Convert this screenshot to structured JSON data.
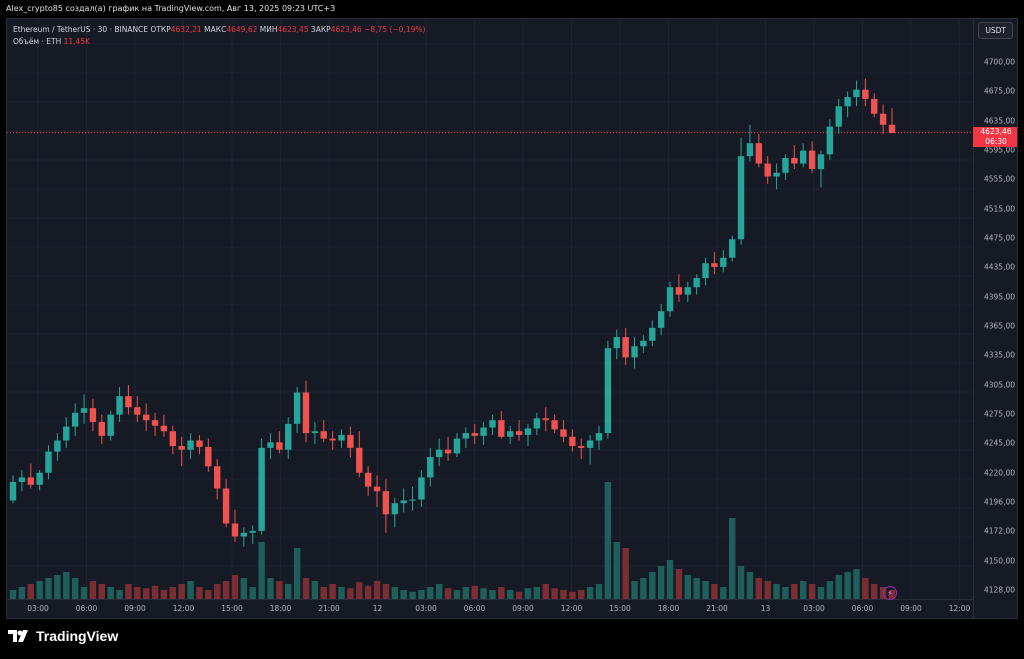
{
  "header": {
    "caption": "Alex_crypto85 создал(а) график на TradingView.com, Авг 13, 2025 09:23 UTC+3"
  },
  "legend": {
    "symbol": "Ethereum / TetherUS · 30 · BINANCE",
    "open_label": "ОТКР",
    "open": "4632,21",
    "high_label": "МАКС",
    "high": "4649,62",
    "low_label": "МИН",
    "low": "4623,45",
    "close_label": "ЗАКР",
    "close": "4623,46",
    "change": "−8,75 (−0,19%)",
    "volume_label": "Объём · ETH",
    "volume": "11,45K"
  },
  "currency_button": "USDT",
  "last_price": {
    "value": "4623,46",
    "countdown": "06:30"
  },
  "footer": {
    "brand": "TradingView"
  },
  "colors": {
    "up": "#26a69a",
    "down": "#ef5350",
    "vol_up": "#1e5f5b",
    "vol_down": "#7a2e33",
    "background": "#161a25"
  },
  "chart_data": {
    "type": "candlestick",
    "y_ticks": [
      "4700,00",
      "4675,00",
      "4635,00",
      "4595,00",
      "4555,00",
      "4515,00",
      "4475,00",
      "4435,00",
      "4395,00",
      "4365,00",
      "4335,00",
      "4305,00",
      "4275,00",
      "4245,00",
      "4220,00",
      "4196,00",
      "4172,00",
      "4150,00",
      "4128,00"
    ],
    "x_ticks": [
      "03:00",
      "06:00",
      "09:00",
      "12:00",
      "15:00",
      "18:00",
      "21:00",
      "12",
      "03:00",
      "06:00",
      "09:00",
      "12:00",
      "15:00",
      "18:00",
      "21:00",
      "13",
      "03:00",
      "06:00",
      "09:00",
      "12:00"
    ],
    "candles": [
      [
        4225,
        4252,
        4222,
        4245
      ],
      [
        4245,
        4258,
        4235,
        4250
      ],
      [
        4250,
        4265,
        4238,
        4242
      ],
      [
        4242,
        4258,
        4236,
        4255
      ],
      [
        4255,
        4285,
        4248,
        4278
      ],
      [
        4278,
        4298,
        4268,
        4290
      ],
      [
        4290,
        4315,
        4282,
        4305
      ],
      [
        4305,
        4330,
        4295,
        4320
      ],
      [
        4320,
        4340,
        4308,
        4325
      ],
      [
        4325,
        4335,
        4300,
        4310
      ],
      [
        4310,
        4318,
        4286,
        4295
      ],
      [
        4295,
        4322,
        4290,
        4318
      ],
      [
        4318,
        4348,
        4310,
        4338
      ],
      [
        4338,
        4350,
        4318,
        4326
      ],
      [
        4326,
        4338,
        4310,
        4318
      ],
      [
        4318,
        4330,
        4300,
        4312
      ],
      [
        4312,
        4320,
        4295,
        4306
      ],
      [
        4306,
        4318,
        4294,
        4300
      ],
      [
        4300,
        4306,
        4275,
        4284
      ],
      [
        4284,
        4294,
        4262,
        4280
      ],
      [
        4280,
        4298,
        4270,
        4290
      ],
      [
        4290,
        4296,
        4275,
        4283
      ],
      [
        4283,
        4292,
        4256,
        4262
      ],
      [
        4262,
        4270,
        4226,
        4238
      ],
      [
        4238,
        4248,
        4196,
        4200
      ],
      [
        4200,
        4215,
        4180,
        4186
      ],
      [
        4186,
        4196,
        4175,
        4190
      ],
      [
        4190,
        4198,
        4178,
        4192
      ],
      [
        4192,
        4292,
        4188,
        4282
      ],
      [
        4282,
        4298,
        4270,
        4288
      ],
      [
        4288,
        4300,
        4276,
        4280
      ],
      [
        4280,
        4315,
        4270,
        4308
      ],
      [
        4308,
        4348,
        4298,
        4342
      ],
      [
        4342,
        4355,
        4288,
        4298
      ],
      [
        4298,
        4310,
        4286,
        4300
      ],
      [
        4300,
        4312,
        4288,
        4292
      ],
      [
        4292,
        4300,
        4280,
        4290
      ],
      [
        4290,
        4302,
        4282,
        4296
      ],
      [
        4296,
        4305,
        4272,
        4282
      ],
      [
        4282,
        4300,
        4250,
        4255
      ],
      [
        4255,
        4262,
        4230,
        4240
      ],
      [
        4240,
        4252,
        4218,
        4235
      ],
      [
        4235,
        4248,
        4190,
        4210
      ],
      [
        4210,
        4228,
        4196,
        4222
      ],
      [
        4222,
        4238,
        4212,
        4225
      ],
      [
        4225,
        4240,
        4214,
        4226
      ],
      [
        4226,
        4258,
        4218,
        4250
      ],
      [
        4250,
        4282,
        4240,
        4272
      ],
      [
        4272,
        4292,
        4262,
        4280
      ],
      [
        4280,
        4294,
        4268,
        4276
      ],
      [
        4276,
        4298,
        4272,
        4292
      ],
      [
        4292,
        4304,
        4282,
        4298
      ],
      [
        4298,
        4308,
        4286,
        4295
      ],
      [
        4295,
        4310,
        4285,
        4304
      ],
      [
        4304,
        4318,
        4296,
        4312
      ],
      [
        4312,
        4322,
        4292,
        4294
      ],
      [
        4294,
        4306,
        4286,
        4300
      ],
      [
        4300,
        4312,
        4290,
        4296
      ],
      [
        4296,
        4308,
        4284,
        4303
      ],
      [
        4303,
        4320,
        4296,
        4314
      ],
      [
        4314,
        4326,
        4300,
        4312
      ],
      [
        4312,
        4318,
        4298,
        4302
      ],
      [
        4302,
        4312,
        4288,
        4294
      ],
      [
        4294,
        4302,
        4278,
        4284
      ],
      [
        4284,
        4292,
        4270,
        4282
      ],
      [
        4282,
        4296,
        4264,
        4290
      ],
      [
        4290,
        4306,
        4280,
        4298
      ],
      [
        4298,
        4398,
        4292,
        4390
      ],
      [
        4390,
        4410,
        4378,
        4402
      ],
      [
        4402,
        4412,
        4372,
        4380
      ],
      [
        4380,
        4402,
        4368,
        4392
      ],
      [
        4392,
        4404,
        4385,
        4398
      ],
      [
        4398,
        4420,
        4392,
        4412
      ],
      [
        4412,
        4438,
        4404,
        4430
      ],
      [
        4430,
        4462,
        4424,
        4456
      ],
      [
        4456,
        4470,
        4440,
        4448
      ],
      [
        4448,
        4462,
        4440,
        4456
      ],
      [
        4456,
        4470,
        4448,
        4466
      ],
      [
        4466,
        4488,
        4458,
        4482
      ],
      [
        4482,
        4494,
        4470,
        4478
      ],
      [
        4478,
        4496,
        4472,
        4488
      ],
      [
        4488,
        4512,
        4484,
        4508
      ],
      [
        4508,
        4618,
        4502,
        4598
      ],
      [
        4598,
        4632,
        4592,
        4612
      ],
      [
        4612,
        4622,
        4586,
        4590
      ],
      [
        4590,
        4598,
        4568,
        4576
      ],
      [
        4576,
        4590,
        4562,
        4580
      ],
      [
        4580,
        4600,
        4572,
        4596
      ],
      [
        4596,
        4610,
        4584,
        4590
      ],
      [
        4590,
        4612,
        4586,
        4604
      ],
      [
        4604,
        4614,
        4580,
        4584
      ],
      [
        4584,
        4604,
        4564,
        4600
      ],
      [
        4600,
        4638,
        4594,
        4630
      ],
      [
        4630,
        4660,
        4622,
        4652
      ],
      [
        4652,
        4668,
        4640,
        4662
      ],
      [
        4662,
        4680,
        4652,
        4670
      ],
      [
        4670,
        4682,
        4652,
        4660
      ],
      [
        4660,
        4666,
        4640,
        4644
      ],
      [
        4644,
        4654,
        4622,
        4632
      ],
      [
        4632,
        4650,
        4623,
        4623
      ]
    ],
    "volumes_note": "relative volume heights",
    "volumes": [
      0.15,
      0.2,
      0.25,
      0.3,
      0.35,
      0.4,
      0.45,
      0.35,
      0.2,
      0.3,
      0.25,
      0.2,
      0.15,
      0.25,
      0.2,
      0.18,
      0.22,
      0.15,
      0.2,
      0.25,
      0.3,
      0.2,
      0.15,
      0.25,
      0.3,
      0.4,
      0.35,
      0.2,
      0.95,
      0.35,
      0.3,
      0.25,
      0.85,
      0.35,
      0.3,
      0.2,
      0.25,
      0.2,
      0.18,
      0.28,
      0.22,
      0.3,
      0.25,
      0.2,
      0.15,
      0.12,
      0.15,
      0.2,
      0.25,
      0.18,
      0.15,
      0.2,
      0.22,
      0.18,
      0.15,
      0.2,
      0.15,
      0.12,
      0.18,
      0.2,
      0.25,
      0.18,
      0.15,
      0.12,
      0.15,
      0.2,
      0.25,
      1.95,
      0.95,
      0.85,
      0.3,
      0.35,
      0.45,
      0.55,
      0.65,
      0.5,
      0.4,
      0.35,
      0.3,
      0.25,
      0.2,
      1.35,
      0.55,
      0.45,
      0.35,
      0.3,
      0.25,
      0.2,
      0.25,
      0.3,
      0.25,
      0.2,
      0.3,
      0.4,
      0.45,
      0.5,
      0.35,
      0.25,
      0.2,
      0.15
    ]
  }
}
